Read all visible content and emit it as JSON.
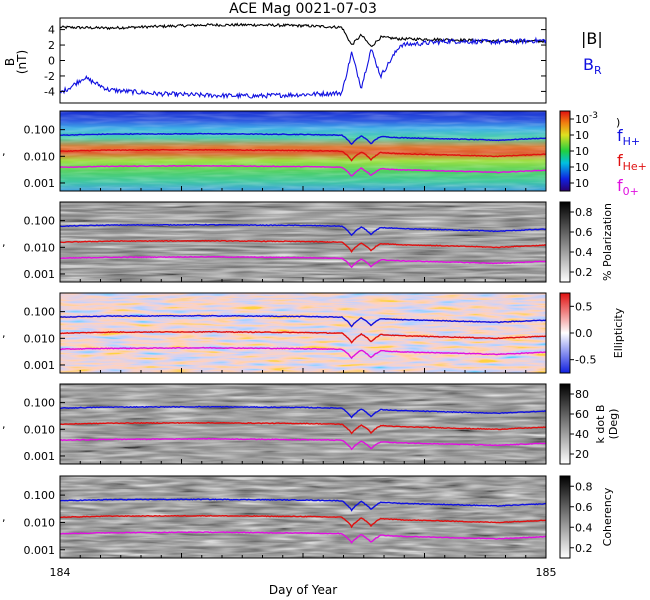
{
  "title": "ACE Mag 0021-07-03",
  "xlabel": "Day of Year",
  "x_ticks": [
    "184",
    "185"
  ],
  "colors": {
    "btotal": "#000000",
    "br": "#1010e0",
    "fh": "#1010e0",
    "fhe": "#e01010",
    "fo": "#e010e0"
  },
  "legend": {
    "btotal": "|B|",
    "br_main": "B",
    "br_sub": "R",
    "fh_main": "f",
    "fh_sub": "H+",
    "fhe_main": "f",
    "fhe_sub": "He+",
    "fo_main": "f",
    "fo_sub": "0+"
  },
  "panels": {
    "mag": {
      "ylabel_top": "B",
      "ylabel_bottom": "(nT)",
      "y_ticks": [
        "4",
        "2",
        "0",
        "-2",
        "-4"
      ]
    },
    "power": {
      "colorbar_labels": [
        "10",
        "10",
        "10",
        "10",
        "10"
      ],
      "colorbar_exponents": [
        "-3",
        "",
        "",
        "",
        ""
      ],
      "colorbar_label": ")"
    },
    "polarization": {
      "colorbar_labels": [
        "0.8",
        "0.6",
        "0.4",
        "0.2"
      ],
      "colorbar_label": "% Polarization"
    },
    "ellipticity": {
      "colorbar_labels": [
        "0.5",
        "0.0",
        "-0.5"
      ],
      "colorbar_label": "Ellipticity"
    },
    "kdotb": {
      "colorbar_labels": [
        "80",
        "60",
        "40",
        "20"
      ],
      "colorbar_label_1": "k dot B",
      "colorbar_label_2": "(Deg)"
    },
    "coherency": {
      "colorbar_labels": [
        "0.8",
        "0.6",
        "0.4",
        "0.2"
      ],
      "colorbar_label": "Coherency"
    }
  },
  "freq_ticks": [
    "0.100",
    "0.010",
    "0.001"
  ],
  "y_axis_char": ",",
  "chart_data": [
    {
      "type": "line",
      "name": "magnetic-field",
      "x_range": [
        184,
        185
      ],
      "ylim": [
        -5.5,
        5.5
      ],
      "series": [
        {
          "name": "|B|",
          "x": [
            184.0,
            184.1,
            184.2,
            184.3,
            184.4,
            184.5,
            184.58,
            184.6,
            184.62,
            184.64,
            184.66,
            184.7,
            184.8,
            184.9,
            185.0
          ],
          "values": [
            4.3,
            4.2,
            4.4,
            4.6,
            4.6,
            4.5,
            4.3,
            2.0,
            3.3,
            1.8,
            3.0,
            2.8,
            2.7,
            2.5,
            2.5
          ]
        },
        {
          "name": "B_R",
          "x": [
            184.0,
            184.02,
            184.05,
            184.1,
            184.2,
            184.3,
            184.4,
            184.5,
            184.58,
            184.6,
            184.62,
            184.64,
            184.66,
            184.7,
            184.8,
            184.9,
            185.0
          ],
          "values": [
            -4.2,
            -3.5,
            -2.2,
            -3.8,
            -4.3,
            -4.5,
            -4.6,
            -4.4,
            -4.2,
            1.0,
            -3.5,
            1.5,
            -2.0,
            2.0,
            2.5,
            2.4,
            2.6
          ]
        }
      ]
    },
    {
      "type": "line",
      "name": "frequency-lines",
      "x_range": [
        184,
        185
      ],
      "yscale": "log",
      "ylim": [
        0.0005,
        0.5
      ],
      "series": [
        {
          "name": "f_H+",
          "x": [
            184.0,
            184.1,
            184.3,
            184.5,
            184.58,
            184.6,
            184.62,
            184.64,
            184.66,
            184.7,
            184.8,
            184.9,
            185.0
          ],
          "values": [
            0.062,
            0.068,
            0.07,
            0.066,
            0.062,
            0.028,
            0.058,
            0.03,
            0.055,
            0.05,
            0.045,
            0.04,
            0.048
          ]
        },
        {
          "name": "f_He+",
          "x": [
            184.0,
            184.1,
            184.3,
            184.5,
            184.58,
            184.6,
            184.62,
            184.64,
            184.66,
            184.7,
            184.8,
            184.9,
            185.0
          ],
          "values": [
            0.0155,
            0.017,
            0.0175,
            0.0165,
            0.0155,
            0.007,
            0.0145,
            0.0075,
            0.0138,
            0.0125,
            0.0112,
            0.01,
            0.012
          ]
        },
        {
          "name": "f_O+",
          "x": [
            184.0,
            184.1,
            184.3,
            184.5,
            184.58,
            184.6,
            184.62,
            184.64,
            184.66,
            184.7,
            184.8,
            184.9,
            185.0
          ],
          "values": [
            0.0039,
            0.0042,
            0.0044,
            0.0041,
            0.0039,
            0.0018,
            0.0036,
            0.0019,
            0.0034,
            0.0031,
            0.0028,
            0.0025,
            0.003
          ]
        }
      ]
    }
  ]
}
